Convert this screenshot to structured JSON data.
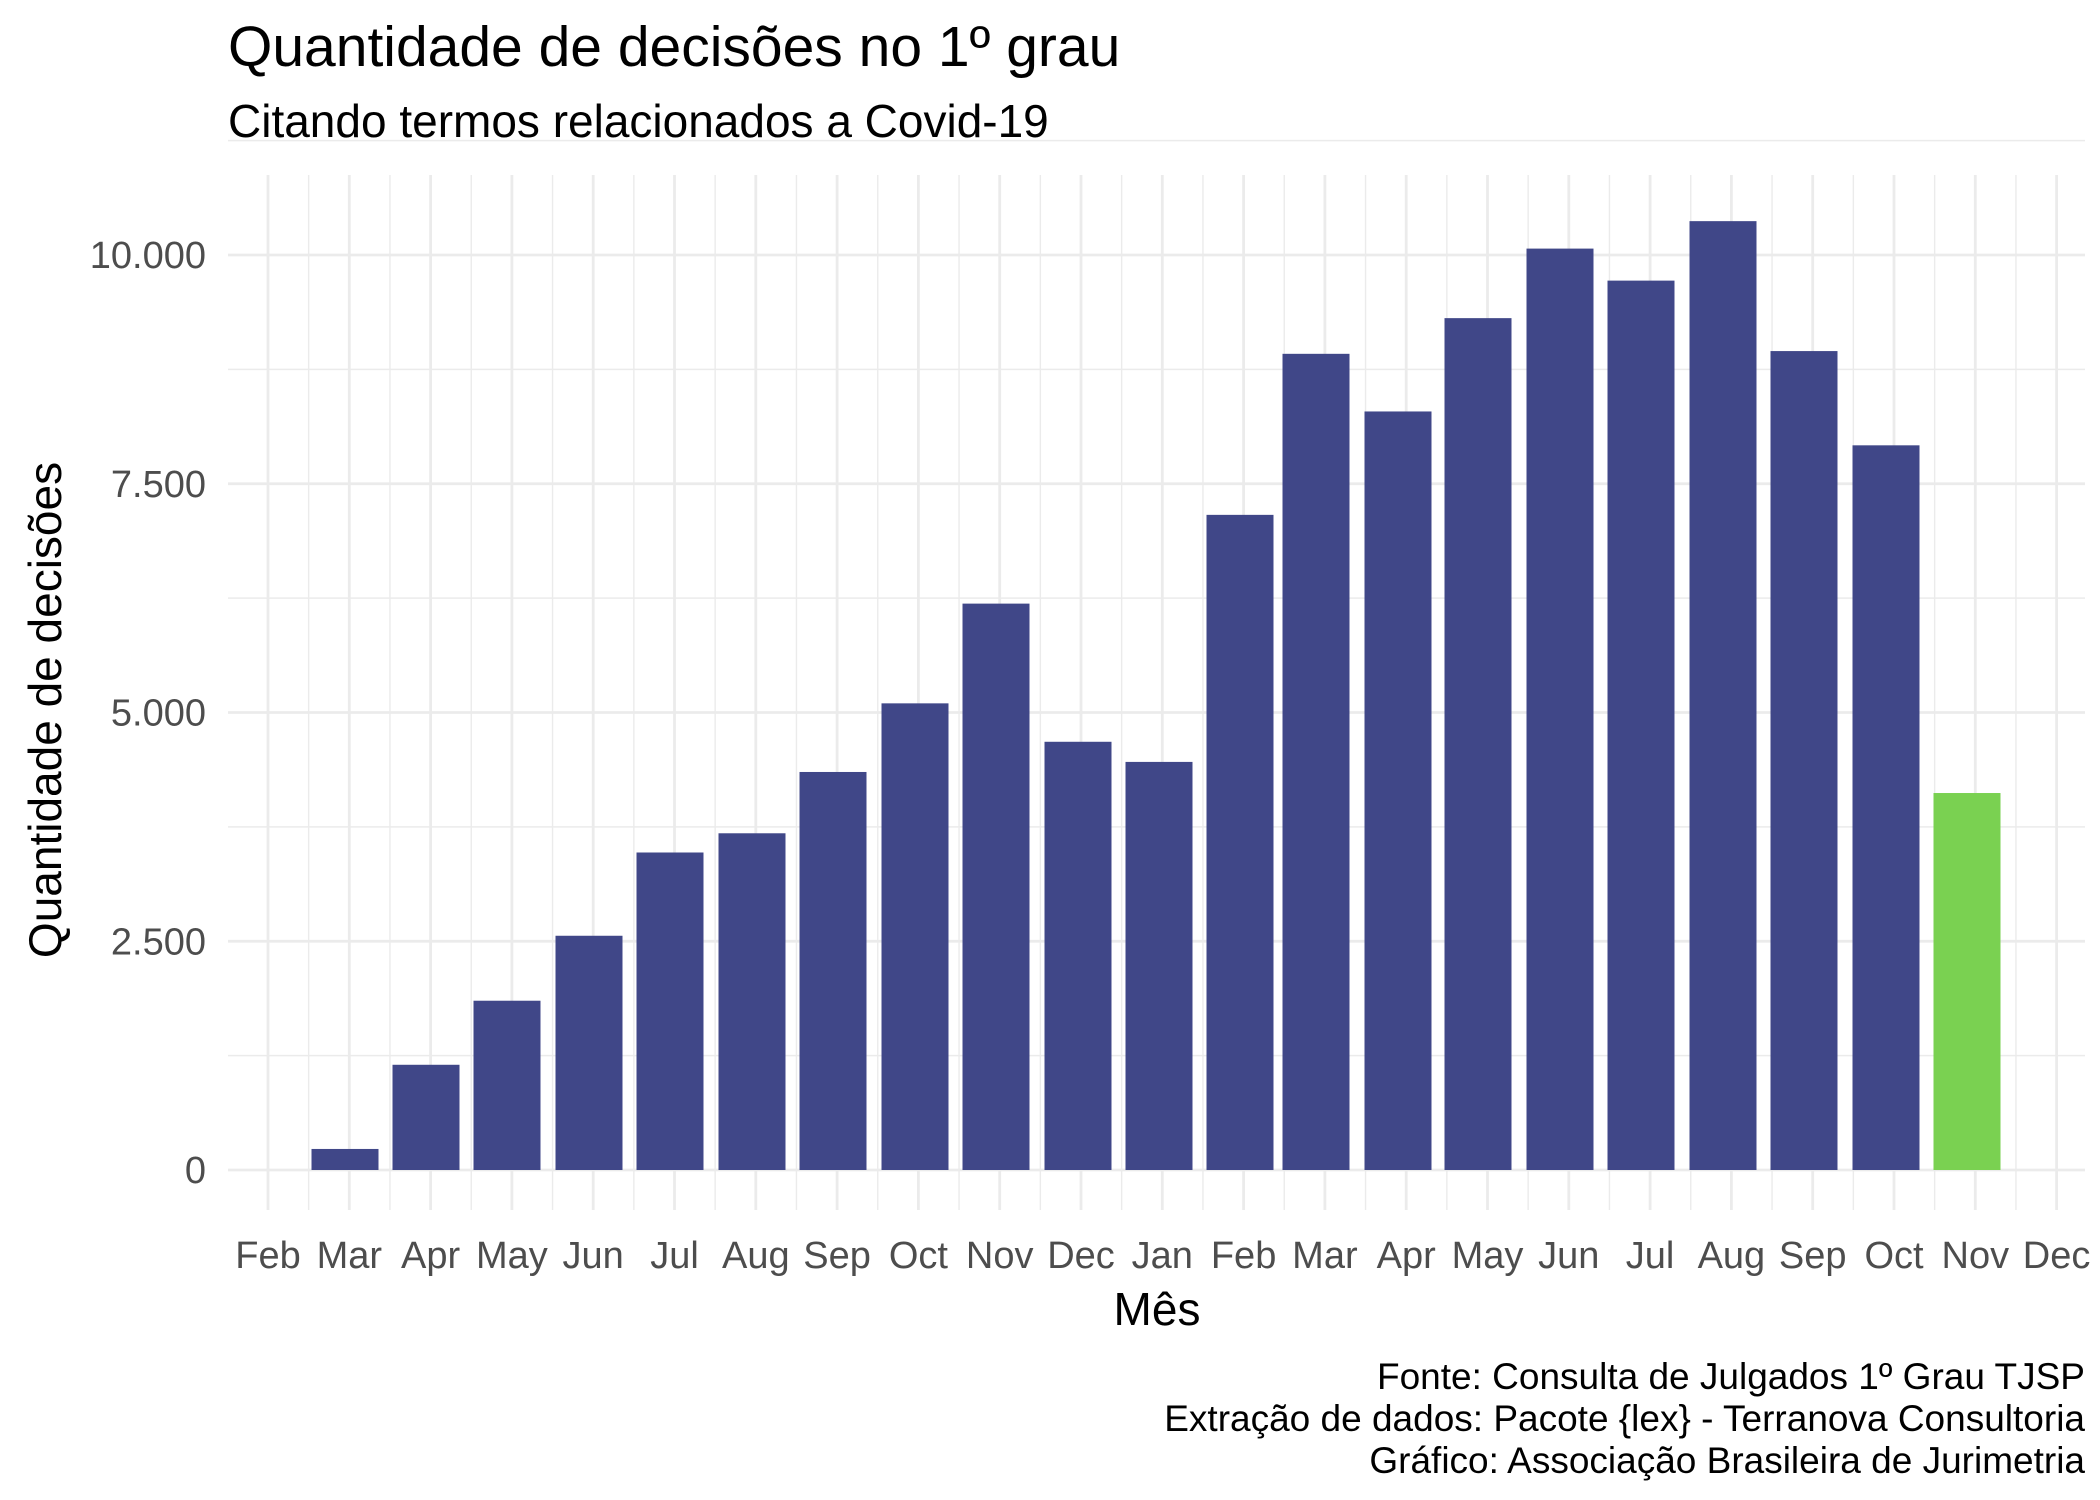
{
  "chart_data": {
    "type": "bar",
    "title": "Quantidade de decisões no 1º grau",
    "subtitle": "Citando termos relacionados a Covid-19",
    "xlabel": "Mês",
    "ylabel": "Quantidade de decisões",
    "x_tick_labels": [
      "Feb",
      "Mar",
      "Apr",
      "May",
      "Jun",
      "Jul",
      "Aug",
      "Sep",
      "Oct",
      "Nov",
      "Dec",
      "Jan",
      "Feb",
      "Mar",
      "Apr",
      "May",
      "Jun",
      "Jul",
      "Aug",
      "Sep",
      "Oct",
      "Nov",
      "Dec"
    ],
    "y_ticks": [
      0,
      2500,
      5000,
      7500,
      10000
    ],
    "y_tick_labels": [
      "0",
      "2.500",
      "5.000",
      "7.500",
      "10.000"
    ],
    "ylim": [
      -450,
      10850
    ],
    "grid": true,
    "legend": "none",
    "colors": {
      "bar": "#404788",
      "highlight": "#7AD151"
    },
    "categories": [
      "2020-03",
      "2020-04",
      "2020-05",
      "2020-06",
      "2020-07",
      "2020-08",
      "2020-09",
      "2020-10",
      "2020-11",
      "2020-12",
      "2021-01",
      "2021-02",
      "2021-03",
      "2021-04",
      "2021-05",
      "2021-06",
      "2021-07",
      "2021-08",
      "2021-09",
      "2021-10",
      "2021-11"
    ],
    "values": [
      230,
      1150,
      1850,
      2560,
      3470,
      3680,
      4350,
      5100,
      6190,
      4680,
      4460,
      7160,
      8920,
      8290,
      9310,
      10070,
      9720,
      10370,
      8950,
      7920,
      4120
    ],
    "highlight": [
      false,
      false,
      false,
      false,
      false,
      false,
      false,
      false,
      false,
      false,
      false,
      false,
      false,
      false,
      false,
      false,
      false,
      false,
      false,
      false,
      true
    ],
    "caption": [
      "Fonte: Consulta de Julgados 1º Grau TJSP",
      "Extração de dados: Pacote {lex} - Terranova Consultoria",
      "Gráfico: Associação Brasileira de Jurimetria"
    ]
  }
}
